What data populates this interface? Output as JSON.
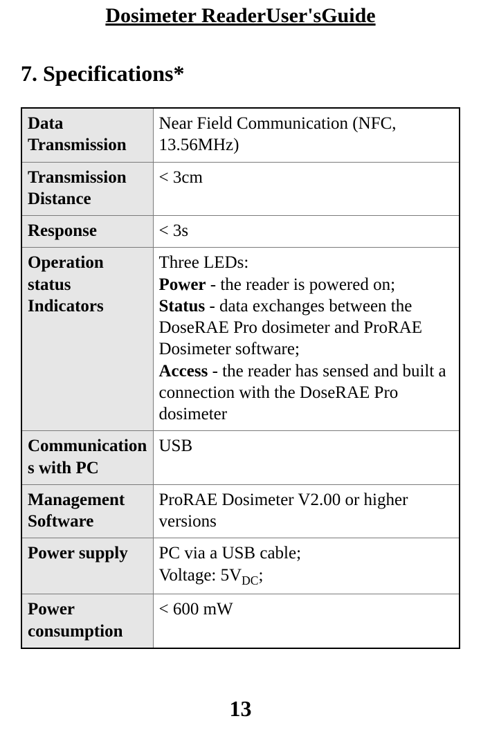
{
  "header": "Dosimeter ReaderUser'sGuide",
  "section_title": "7. Specifications*",
  "page_number": "13",
  "table": {
    "border_color": "#000000",
    "inner_border_color": "#7a7a7a",
    "label_bg": "#e6e6e6",
    "value_bg": "#ffffff",
    "rows": [
      {
        "label": "Data Transmission",
        "value_plain": "Near Field Communication (NFC, 13.56MHz)"
      },
      {
        "label": "Transmission Distance",
        "value_plain": "< 3cm"
      },
      {
        "label": "Response",
        "value_plain": "< 3s"
      },
      {
        "label": "Operation status Indicators",
        "value_rich": {
          "intro": "Three LEDs:",
          "items": [
            {
              "bold": "Power",
              "text": " - the reader is powered on;"
            },
            {
              "bold": "Status",
              "text": " - data exchanges between the DoseRAE Pro dosimeter and ProRAE Dosimeter software;"
            },
            {
              "bold": "Access",
              "text": " -  the reader has sensed and built a connection with the DoseRAE Pro dosimeter"
            }
          ]
        }
      },
      {
        "label": "Communications with PC",
        "value_plain": "USB"
      },
      {
        "label": "Management Software",
        "value_plain": "ProRAE Dosimeter V2.00 or higher versions"
      },
      {
        "label": "Power supply",
        "value_power": {
          "line1": "PC via a USB cable;",
          "line2_prefix": "Voltage: 5V",
          "line2_sub": "DC",
          "line2_suffix": ";"
        }
      },
      {
        "label": "Power consumption",
        "value_plain": "< 600 mW"
      }
    ]
  }
}
